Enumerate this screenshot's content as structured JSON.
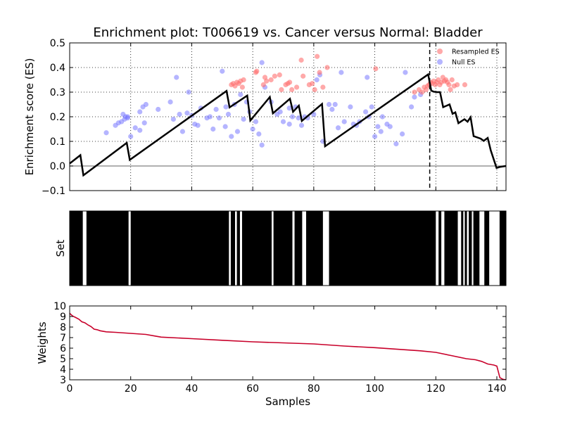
{
  "chart_data": [
    {
      "type": "line",
      "title": "Enrichment plot: T006619 vs. Cancer versus Normal: Bladder",
      "xlabel": "",
      "ylabel": "Enrichment score (ES)",
      "xlim": [
        0,
        143
      ],
      "ylim": [
        -0.1,
        0.5
      ],
      "yticks": [
        "−0.1",
        "0.0",
        "0.1",
        "0.2",
        "0.3",
        "0.4",
        "0.5"
      ],
      "grid": true,
      "legend_position": "top-right",
      "legend": [
        "Resampled ES",
        "Null ES"
      ],
      "colors": {
        "es_line": "#000000",
        "resampled": "#ff7070",
        "null": "#7878ff"
      },
      "baseline": 0.0,
      "es_vline_x": 118,
      "series": [
        {
          "name": "",
          "kind": "running_es",
          "x": [
            0,
            3.5,
            4.5,
            18.7,
            19.7,
            51.4,
            52.4,
            58.2,
            59.2,
            65.6,
            66.6,
            72.2,
            73.2,
            75.1,
            76.1,
            82.7,
            83.7,
            117.5,
            118.5,
            119.3,
            120.3,
            121.4,
            122.4,
            124.5,
            125.5,
            126.4,
            127.4,
            129.4,
            130.4,
            131.4,
            132.4,
            134.7,
            135.7,
            137.0,
            138.0,
            139.9,
            140.9,
            143.0
          ],
          "y": [
            0.01,
            0.044,
            -0.038,
            0.094,
            0.025,
            0.305,
            0.238,
            0.286,
            0.185,
            0.28,
            0.214,
            0.273,
            0.22,
            0.245,
            0.183,
            0.252,
            0.08,
            0.372,
            0.306,
            0.302,
            0.3,
            0.3,
            0.239,
            0.25,
            0.212,
            0.218,
            0.174,
            0.19,
            0.18,
            0.198,
            0.121,
            0.111,
            0.102,
            0.114,
            0.064,
            -0.008,
            -0.004,
            0.0
          ]
        },
        {
          "name": "Resampled ES",
          "kind": "scatter",
          "x": [
            53,
            53.6,
            54.2,
            54.8,
            55.4,
            56,
            56.6,
            57,
            63.5,
            64,
            64.5,
            66,
            67.2,
            68.8,
            69.4,
            70.8,
            71.5,
            72.1,
            72.8,
            74.4,
            75.9,
            76.5,
            78.5,
            79.5,
            80.3,
            81.1,
            81.9,
            83,
            84.4,
            100.3,
            113,
            114.5,
            115.5,
            116.2,
            116.8,
            117.3,
            117.8,
            118.3,
            118.8,
            119.3,
            119.8,
            120.3,
            120.8,
            121.3,
            121.8,
            122.3,
            122.8,
            123.3,
            123.8,
            124.3,
            124.8,
            125.3,
            126,
            127,
            129.5,
            61,
            61.3
          ],
          "y": [
            0.33,
            0.335,
            0.325,
            0.34,
            0.335,
            0.345,
            0.32,
            0.35,
            0.33,
            0.36,
            0.345,
            0.35,
            0.365,
            0.37,
            0.31,
            0.33,
            0.335,
            0.34,
            0.31,
            0.32,
            0.43,
            0.365,
            0.33,
            0.335,
            0.31,
            0.445,
            0.38,
            0.32,
            0.4,
            0.395,
            0.3,
            0.31,
            0.3,
            0.32,
            0.31,
            0.325,
            0.33,
            0.34,
            0.335,
            0.345,
            0.33,
            0.34,
            0.35,
            0.33,
            0.34,
            0.36,
            0.345,
            0.35,
            0.34,
            0.33,
            0.31,
            0.35,
            0.325,
            0.33,
            0.33,
            0.38,
            0.385
          ]
        },
        {
          "name": "Null ES",
          "kind": "scatter",
          "x": [
            12,
            15,
            16,
            17,
            18,
            19,
            20,
            21.5,
            23,
            24,
            25,
            29,
            33,
            34,
            35,
            36,
            37,
            39,
            40,
            41,
            42,
            43,
            45,
            46,
            47,
            48,
            49,
            50,
            51,
            52,
            53,
            54,
            55,
            56,
            57,
            58,
            59,
            60,
            61,
            62,
            63,
            64,
            66,
            68,
            69,
            70,
            72,
            73,
            74,
            75,
            76,
            77,
            78,
            80,
            81,
            82,
            83,
            86,
            87,
            89,
            90,
            92,
            93,
            94,
            95,
            97,
            98,
            99,
            100,
            101,
            102,
            104,
            105,
            107,
            109,
            110,
            112,
            113,
            115,
            17.5,
            18.3,
            19,
            23,
            24.5,
            38.5,
            51.2,
            63,
            72,
            88,
            97.5,
            85,
            102.5
          ],
          "y": [
            0.135,
            0.165,
            0.175,
            0.18,
            0.19,
            0.2,
            0.12,
            0.155,
            0.22,
            0.24,
            0.25,
            0.23,
            0.26,
            0.19,
            0.36,
            0.21,
            0.14,
            0.3,
            0.205,
            0.17,
            0.165,
            0.235,
            0.195,
            0.2,
            0.15,
            0.23,
            0.195,
            0.385,
            0.16,
            0.21,
            0.12,
            0.25,
            0.14,
            0.29,
            0.19,
            0.26,
            0.22,
            0.15,
            0.18,
            0.13,
            0.42,
            0.32,
            0.26,
            0.21,
            0.22,
            0.18,
            0.235,
            0.2,
            0.24,
            0.195,
            0.165,
            0.2,
            0.195,
            0.21,
            0.35,
            0.37,
            0.1,
            0.23,
            0.25,
            0.38,
            0.18,
            0.24,
            0.17,
            0.165,
            0.18,
            0.22,
            0.2,
            0.24,
            0.12,
            0.16,
            0.14,
            0.17,
            0.16,
            0.09,
            0.13,
            0.38,
            0.24,
            0.28,
            0.29,
            0.21,
            0.2,
            0.195,
            0.145,
            0.175,
            0.215,
            0.24,
            0.085,
            0.17,
            0.155,
            0.36,
            0.25,
            0.2
          ]
        }
      ]
    },
    {
      "type": "heatmap",
      "title": "",
      "xlabel": "",
      "ylabel": "Set",
      "xlim": [
        0,
        143
      ],
      "colors": {
        "in_set": "#000000",
        "not_in_set": "#ffffff"
      },
      "gaps": [
        [
          4.3,
          5.5
        ],
        [
          19.3,
          20.0
        ],
        [
          52.2,
          52.8
        ],
        [
          54.2,
          54.8
        ],
        [
          55.8,
          56.5
        ],
        [
          66.2,
          66.8
        ],
        [
          73.0,
          73.7
        ],
        [
          76.2,
          77.5
        ],
        [
          83.0,
          85.0
        ],
        [
          120.0,
          120.9
        ],
        [
          121.8,
          122.8
        ],
        [
          127.2,
          128.3
        ],
        [
          129.0,
          129.5
        ],
        [
          130.2,
          130.8
        ],
        [
          131.8,
          132.3
        ],
        [
          134.3,
          135.9
        ],
        [
          137.5,
          140.9
        ]
      ]
    },
    {
      "type": "line",
      "title": "",
      "xlabel": "Samples",
      "ylabel": "Weights",
      "xlim": [
        0,
        143
      ],
      "ylim": [
        3,
        10
      ],
      "xticks": [
        "0",
        "20",
        "40",
        "60",
        "80",
        "100",
        "120",
        "140"
      ],
      "yticks": [
        "3",
        "4",
        "5",
        "6",
        "7",
        "8",
        "9",
        "10"
      ],
      "colors": {
        "line": "#c8002a"
      },
      "series": [
        {
          "name": "",
          "x": [
            0,
            1,
            2,
            3,
            4,
            5,
            6,
            7,
            8,
            9,
            10,
            12,
            15,
            20,
            25,
            28,
            30,
            40,
            50,
            60,
            70,
            80,
            90,
            100,
            110,
            115,
            120,
            125,
            130,
            133,
            135,
            137,
            139,
            140,
            141,
            142,
            143
          ],
          "y": [
            9.3,
            9.05,
            8.9,
            8.75,
            8.5,
            8.4,
            8.2,
            8.05,
            7.8,
            7.75,
            7.65,
            7.55,
            7.5,
            7.4,
            7.3,
            7.15,
            7.05,
            6.9,
            6.75,
            6.6,
            6.5,
            6.4,
            6.2,
            6.05,
            5.85,
            5.75,
            5.6,
            5.3,
            5.0,
            4.9,
            4.75,
            4.5,
            4.4,
            4.3,
            3.2,
            3.05,
            3.0
          ]
        }
      ]
    }
  ]
}
